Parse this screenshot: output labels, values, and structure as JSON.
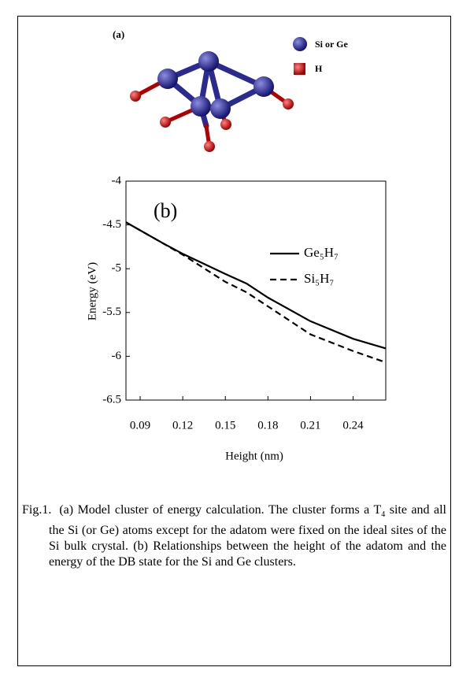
{
  "panel_a": {
    "label": "(a)",
    "legend": [
      "Si or Ge",
      "H"
    ]
  },
  "chart_data": {
    "type": "line",
    "annotation": "(b)",
    "x_label": "Height (nm)",
    "y_label": "Energy (eV)",
    "x": [
      0.08,
      0.105,
      0.12,
      0.15,
      0.165,
      0.18,
      0.21,
      0.24,
      0.263
    ],
    "series": [
      {
        "name": "Ge₅H₇",
        "color": "#000000",
        "dash": false,
        "values": [
          -4.47,
          -4.7,
          -4.83,
          -5.06,
          -5.17,
          -5.33,
          -5.6,
          -5.8,
          -5.91
        ]
      },
      {
        "name": "Si₅H₇",
        "color": "#000000",
        "dash": true,
        "values": [
          -4.47,
          -4.7,
          -4.84,
          -5.15,
          -5.27,
          -5.43,
          -5.75,
          -5.94,
          -6.07
        ]
      }
    ],
    "xlim": [
      0.08,
      0.263
    ],
    "ylim": [
      -6.5,
      -4
    ],
    "xticks": [
      0.09,
      0.12,
      0.15,
      0.18,
      0.21,
      0.24
    ],
    "yticks": [
      -4,
      -4.5,
      -5,
      -5.5,
      -6,
      -6.5
    ]
  },
  "caption": {
    "label": "Fig.1.",
    "before": "(a) Model cluster of energy calculation. The cluster forms a T",
    "sub": "4",
    "after": " site and all the Si (or Ge) atoms except for the adatom were fixed on the ideal sites of the Si bulk crystal. (b) Relationships between the height of the adatom and the energy of the DB state for the Si and Ge clusters."
  }
}
